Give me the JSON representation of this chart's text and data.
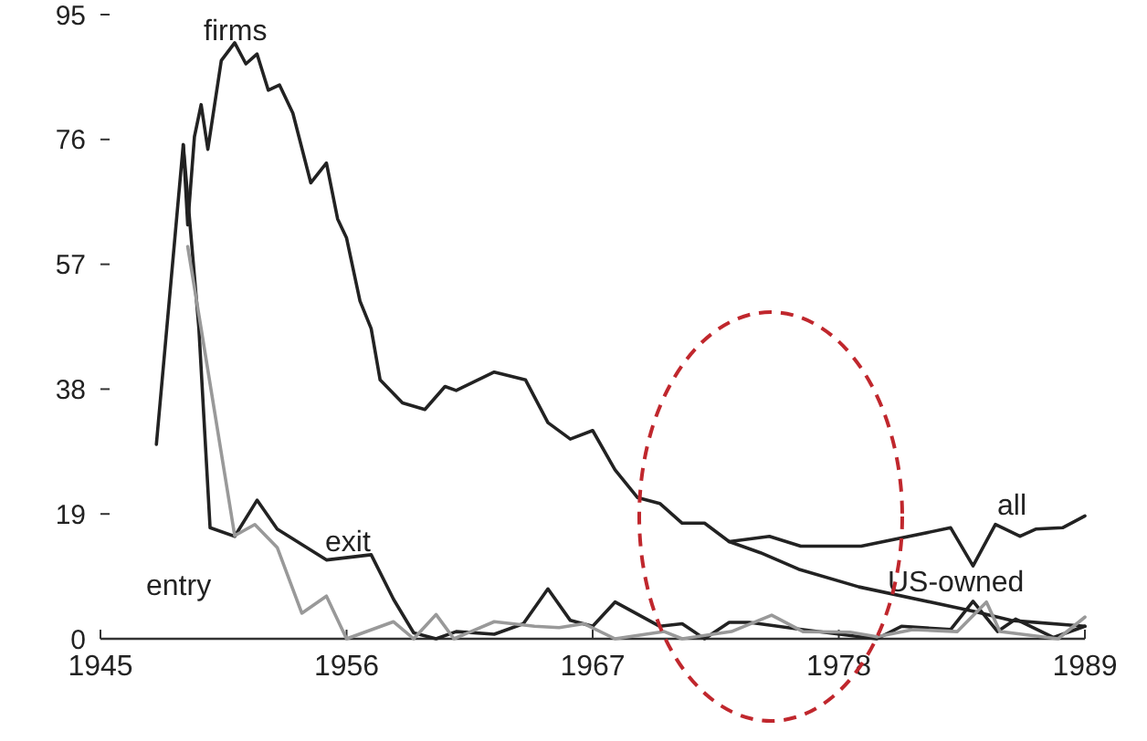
{
  "chart_data": {
    "type": "line",
    "title": "firms",
    "xlim": [
      1945,
      1989
    ],
    "xticks": [
      1945,
      1956,
      1967,
      1978,
      1989
    ],
    "ylim": [
      0,
      95
    ],
    "yticks": [
      0,
      19,
      38,
      57,
      76,
      95
    ],
    "grid": false,
    "marker": "none",
    "line_style": "solid",
    "series": [
      {
        "name": "all",
        "color": "#222222",
        "x": [
          1947.5,
          1948.7,
          1948.9,
          1949.2,
          1949.5,
          1949.8,
          1950.4,
          1951.0,
          1951.5,
          1952.0,
          1952.5,
          1953.0,
          1953.6,
          1954.4,
          1955.1,
          1955.6,
          1956.0,
          1956.6,
          1957.1,
          1957.5,
          1958.5,
          1959.5,
          1960.4,
          1960.9,
          1962.6,
          1964.0,
          1965.0,
          1966.0,
          1967.0,
          1968.0,
          1969.0,
          1970.0,
          1971.0,
          1972.0,
          1973.1,
          1974.9,
          1976.3,
          1979.0,
          1983.0,
          1984.0,
          1985.0,
          1986.1,
          1986.8,
          1988.0,
          1989.0
        ],
        "values": [
          29.6,
          75.2,
          63,
          76.4,
          81.3,
          74.5,
          88,
          90.7,
          87.5,
          89,
          83.5,
          84.3,
          80,
          69.4,
          72.4,
          63.9,
          61,
          51.4,
          47.2,
          39.4,
          35.9,
          34.9,
          38.4,
          37.8,
          40.6,
          39.4,
          32.9,
          30.4,
          31.7,
          25.7,
          21.5,
          20.6,
          17.6,
          17.6,
          14.8,
          15.6,
          14.1,
          14.1,
          16.9,
          11.1,
          17.4,
          15.6,
          16.7,
          16.9,
          18.7
        ]
      },
      {
        "name": "US-owned",
        "color": "#222222",
        "x": [
          1973.1,
          1974.5,
          1976.2,
          1978.9,
          1984.0,
          1985.7,
          1989.0
        ],
        "values": [
          14.8,
          13.1,
          10.6,
          7.9,
          4.2,
          2.8,
          1.9
        ]
      },
      {
        "name": "exit",
        "color": "#222222",
        "x": [
          1948.7,
          1949.4,
          1949.9,
          1951.0,
          1952.0,
          1952.9,
          1955.1,
          1957.1,
          1958.1,
          1959.0,
          1960.0,
          1960.9,
          1962.6,
          1963.9,
          1965.0,
          1966.0,
          1967.0,
          1968.0,
          1970.0,
          1971.0,
          1972.0,
          1973.1,
          1974.0,
          1976.4,
          1979.7,
          1980.8,
          1983.0,
          1984.0,
          1985.1,
          1985.9,
          1987.6,
          1989.0
        ],
        "values": [
          75.2,
          47.2,
          16.9,
          15.6,
          21.1,
          16.7,
          12,
          12.8,
          6,
          0.9,
          0,
          1.1,
          0.7,
          2.3,
          7.6,
          2.8,
          1.9,
          5.6,
          1.9,
          2.3,
          0,
          2.5,
          2.5,
          1.4,
          0,
          1.9,
          1.4,
          5.7,
          1.1,
          3,
          0.2,
          1.9
        ]
      },
      {
        "name": "entry",
        "color": "#999999",
        "x": [
          1948.9,
          1949.5,
          1951.0,
          1951.9,
          1952.9,
          1954.0,
          1955.1,
          1956.0,
          1958.1,
          1959.0,
          1960.0,
          1960.8,
          1962.6,
          1964.4,
          1965.5,
          1966.6,
          1968.0,
          1970.2,
          1971.0,
          1973.2,
          1975.0,
          1976.4,
          1978.5,
          1979.7,
          1981.3,
          1983.3,
          1984.6,
          1985.2,
          1987.8,
          1989.0
        ],
        "values": [
          59.7,
          47.2,
          15.7,
          17.4,
          13.9,
          3.9,
          6.5,
          0,
          2.6,
          0,
          3.7,
          0,
          2.6,
          1.9,
          1.7,
          2.3,
          0,
          1.1,
          0,
          1.1,
          3.6,
          1.1,
          1,
          0.3,
          1.4,
          1.1,
          5.6,
          1.1,
          0,
          3.3
        ]
      }
    ]
  }
}
